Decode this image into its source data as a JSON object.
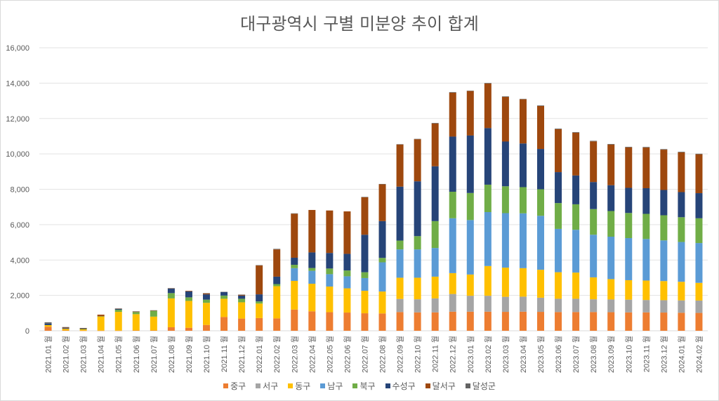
{
  "chart_data": {
    "type": "bar",
    "stacked": true,
    "title": "대구광역시 구별 미분양 추이 합계",
    "xlabel": "",
    "ylabel": "",
    "ylim": [
      0,
      16000
    ],
    "yticks": [
      0,
      2000,
      4000,
      6000,
      8000,
      10000,
      12000,
      14000,
      16000
    ],
    "ytick_labels": [
      "0",
      "2,000",
      "4,000",
      "6,000",
      "8,000",
      "10,000",
      "12,000",
      "14,000",
      "16,000"
    ],
    "grid": true,
    "legend_position": "bottom",
    "categories": [
      "2021.01 월",
      "2021.02 월",
      "2021.03 월",
      "2021.04 월",
      "2021.05 월",
      "2021.06 월",
      "2021.07 월",
      "2021.08 월",
      "2021.09 월",
      "2021.10 월",
      "2021.11 월",
      "2021.12 월",
      "2022.01 월",
      "2022.02 월",
      "2022.03 월",
      "2022.04 월",
      "2022.05 월",
      "2022.06 월",
      "2022.07 월",
      "2022.08 월",
      "2022.09 월",
      "2022.10 월",
      "2022.11 월",
      "2022.12 월",
      "2023.01 월",
      "2023.02 월",
      "2023.03 월",
      "2023.04 월",
      "2023.05 월",
      "2023.06 월",
      "2023.07 월",
      "2023.08 월",
      "2023.09 월",
      "2023.10 월",
      "2023.11 월",
      "2023.12 월",
      "2024.01 월",
      "2024.02 월"
    ],
    "series": [
      {
        "name": "중구",
        "color": "#ED7D31",
        "values": [
          230,
          20,
          10,
          10,
          10,
          20,
          20,
          200,
          170,
          330,
          780,
          690,
          720,
          700,
          1200,
          1100,
          1050,
          1030,
          990,
          980,
          1060,
          1040,
          1040,
          1080,
          1080,
          1080,
          1070,
          1080,
          1070,
          1060,
          1060,
          1060,
          1050,
          1040,
          1040,
          1030,
          1020,
          1010
        ]
      },
      {
        "name": "서구",
        "color": "#A5A5A5",
        "values": [
          0,
          0,
          0,
          0,
          0,
          0,
          0,
          0,
          0,
          0,
          0,
          0,
          0,
          0,
          0,
          0,
          0,
          0,
          0,
          0,
          740,
          740,
          790,
          1000,
          900,
          900,
          850,
          850,
          800,
          750,
          750,
          720,
          720,
          720,
          700,
          700,
          700,
          700
        ]
      },
      {
        "name": "동구",
        "color": "#FFC000",
        "values": [
          90,
          90,
          80,
          800,
          1060,
          920,
          780,
          1630,
          1520,
          1250,
          1030,
          920,
          820,
          1820,
          1620,
          1560,
          1450,
          1370,
          1270,
          1240,
          1200,
          1220,
          1230,
          1180,
          1200,
          1680,
          1650,
          1610,
          1580,
          1500,
          1480,
          1240,
          1150,
          1100,
          1100,
          1080,
          1050,
          1000
        ]
      },
      {
        "name": "남구",
        "color": "#5B9BD5",
        "values": [
          0,
          0,
          0,
          0,
          0,
          0,
          0,
          0,
          0,
          0,
          0,
          0,
          0,
          0,
          720,
          730,
          700,
          680,
          720,
          1650,
          1600,
          1600,
          1620,
          3100,
          3080,
          3050,
          3080,
          3100,
          3050,
          2450,
          2420,
          2410,
          2400,
          2380,
          2350,
          2300,
          2250,
          2250
        ]
      },
      {
        "name": "북구",
        "color": "#70AD47",
        "values": [
          0,
          0,
          10,
          10,
          120,
          120,
          330,
          300,
          200,
          180,
          180,
          200,
          120,
          120,
          190,
          160,
          320,
          330,
          330,
          250,
          500,
          750,
          1520,
          1500,
          1530,
          1550,
          1520,
          1480,
          1500,
          1460,
          1440,
          1450,
          1450,
          1420,
          1420,
          1420,
          1400,
          1400
        ]
      },
      {
        "name": "수성구",
        "color": "#264478",
        "values": [
          90,
          40,
          30,
          0,
          40,
          0,
          0,
          250,
          340,
          300,
          200,
          180,
          400,
          420,
          400,
          880,
          880,
          940,
          2120,
          2080,
          3050,
          3100,
          3100,
          3120,
          3250,
          3200,
          2530,
          2470,
          2280,
          1750,
          1630,
          1530,
          1460,
          1420,
          1450,
          1430,
          1420,
          1420
        ]
      },
      {
        "name": "달서구",
        "color": "#9E480E",
        "values": [
          0,
          30,
          10,
          90,
          20,
          30,
          10,
          20,
          30,
          50,
          0,
          40,
          1630,
          1540,
          2490,
          2400,
          2400,
          2400,
          2120,
          2080,
          2380,
          2380,
          2420,
          2480,
          2520,
          2520,
          2520,
          2500,
          2430,
          2430,
          2420,
          2300,
          2300,
          2290,
          2300,
          2280,
          2250,
          2200
        ]
      },
      {
        "name": "달성군",
        "color": "#636363",
        "values": [
          70,
          30,
          20,
          0,
          10,
          10,
          20,
          10,
          0,
          20,
          10,
          20,
          20,
          30,
          20,
          0,
          0,
          0,
          20,
          20,
          20,
          20,
          30,
          30,
          10,
          30,
          30,
          20,
          30,
          30,
          30,
          30,
          30,
          30,
          30,
          30,
          30,
          30
        ]
      }
    ]
  }
}
